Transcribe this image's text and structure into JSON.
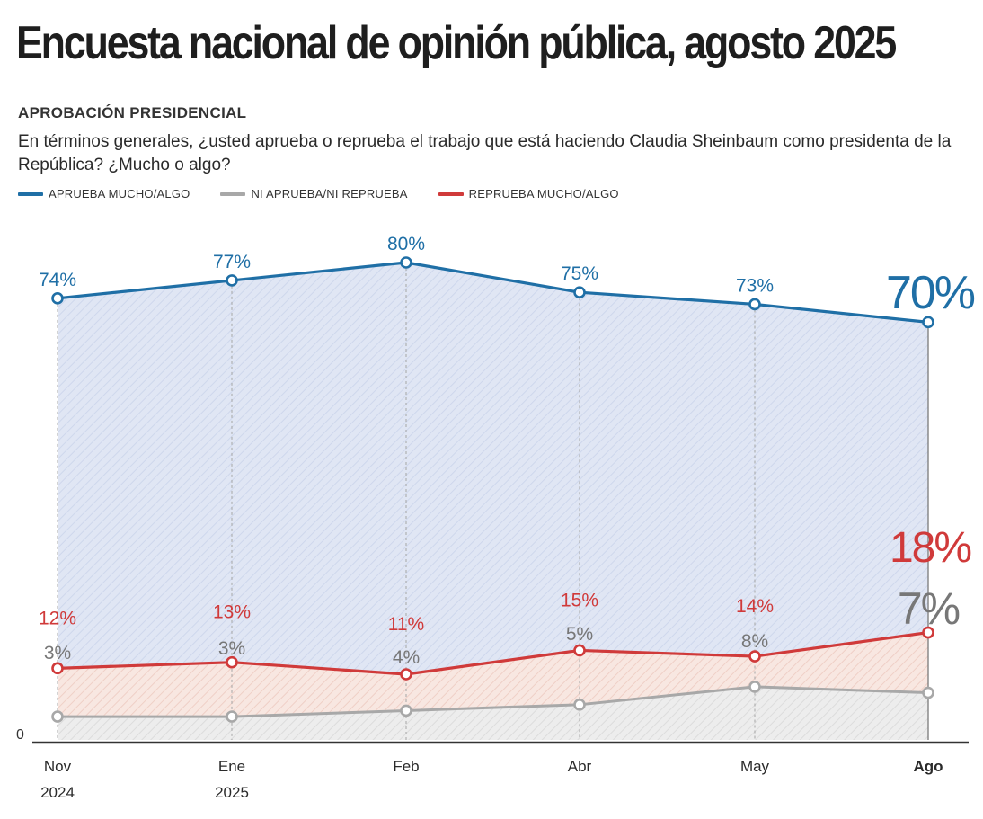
{
  "header": {
    "title": "Encuesta nacional de opinión pública, agosto 2025",
    "section": "APROBACIÓN PRESIDENCIAL",
    "question": "En términos generales, ¿usted aprueba o reprueba el trabajo que está haciendo Claudia Sheinbaum como presidenta de la República? ¿Mucho o algo?"
  },
  "chart_data": {
    "type": "area",
    "title": "APROBACIÓN PRESIDENCIAL",
    "categories": [
      "Nov 2024",
      "Ene 2025",
      "Feb",
      "Abr",
      "May",
      "Ago"
    ],
    "x_labels": [
      {
        "line1": "Nov",
        "line2": "2024",
        "bold": false
      },
      {
        "line1": "Ene",
        "line2": "2025",
        "bold": false
      },
      {
        "line1": "Feb",
        "line2": "",
        "bold": false
      },
      {
        "line1": "Abr",
        "line2": "",
        "bold": false
      },
      {
        "line1": "May",
        "line2": "",
        "bold": false
      },
      {
        "line1": "Ago",
        "line2": "",
        "bold": true
      }
    ],
    "y_tick_label": "0",
    "ylim": [
      0,
      80
    ],
    "grid": false,
    "legend_position": "top-left",
    "series": [
      {
        "key": "aprueba",
        "name": "APRUEBA MUCHO/ALGO",
        "color": "#1f6fa6",
        "values": [
          74,
          77,
          80,
          75,
          73,
          70
        ],
        "labels": [
          "74%",
          "77%",
          "80%",
          "75%",
          "73%",
          "70%"
        ]
      },
      {
        "key": "ni",
        "name": "NI APRUEBA/NI REPRUEBA",
        "color": "#a8a8a8",
        "label_color": "#777777",
        "values": [
          3,
          3,
          4,
          5,
          8,
          7
        ],
        "labels": [
          "3%",
          "3%",
          "4%",
          "5%",
          "8%",
          "7%"
        ]
      },
      {
        "key": "reprueba",
        "name": "REPRUEBA MUCHO/ALGO",
        "color": "#d03a3a",
        "values": [
          12,
          13,
          11,
          15,
          14,
          18
        ],
        "labels": [
          "12%",
          "13%",
          "11%",
          "15%",
          "14%",
          "18%"
        ]
      }
    ]
  }
}
